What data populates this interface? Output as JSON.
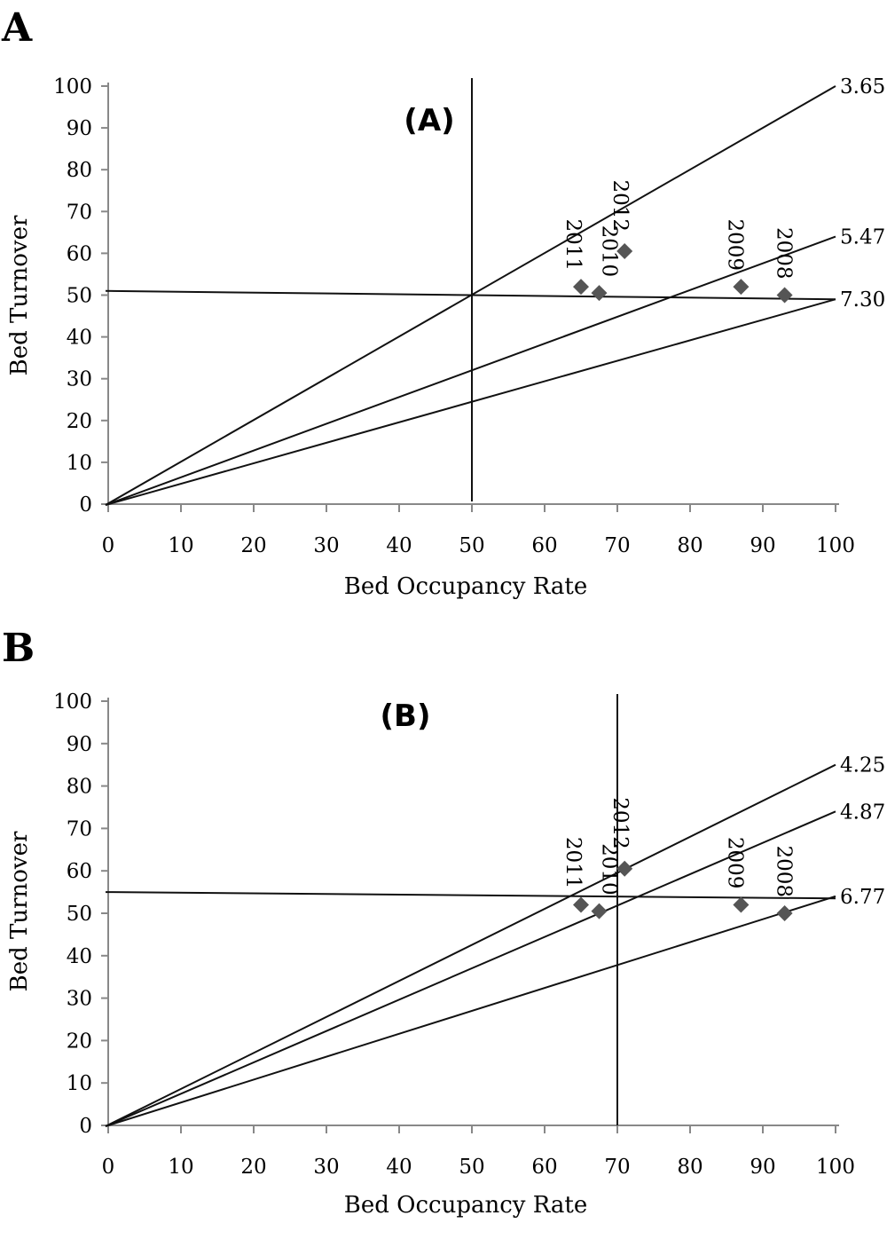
{
  "chart_data": [
    {
      "panel": "A",
      "type": "scatter",
      "title": "(A)",
      "xlabel": "Bed Occupancy Rate",
      "ylabel": "Bed Turnover",
      "xlim": [
        0,
        100
      ],
      "ylim": [
        0,
        100
      ],
      "xticks": [
        "0",
        "10",
        "20",
        "30",
        "40",
        "50",
        "60",
        "70",
        "80",
        "90",
        "100"
      ],
      "yticks": [
        "0",
        "10",
        "20",
        "30",
        "40",
        "50",
        "60",
        "70",
        "80",
        "90",
        "100"
      ],
      "points": [
        {
          "year": "2011",
          "x": 65,
          "y": 52
        },
        {
          "year": "2010",
          "x": 67.5,
          "y": 50.5
        },
        {
          "year": "2012",
          "x": 71,
          "y": 60.5
        },
        {
          "year": "2009",
          "x": 87,
          "y": 52
        },
        {
          "year": "2008",
          "x": 93,
          "y": 50
        }
      ],
      "isoclines": [
        {
          "label": "3.65",
          "end_y": 100
        },
        {
          "label": "5.47",
          "end_y": 64
        },
        {
          "label": "7.30",
          "end_y": 49
        }
      ],
      "reference_lines": {
        "vertical_x": 50,
        "horizontal_y": [
          51,
          49
        ]
      },
      "marker_color": "#555555"
    },
    {
      "panel": "B",
      "type": "scatter",
      "title": "(B)",
      "xlabel": "Bed Occupancy Rate",
      "ylabel": "Bed Turnover",
      "xlim": [
        0,
        100
      ],
      "ylim": [
        0,
        100
      ],
      "xticks": [
        "0",
        "10",
        "20",
        "30",
        "40",
        "50",
        "60",
        "70",
        "80",
        "90",
        "100"
      ],
      "yticks": [
        "0",
        "10",
        "20",
        "30",
        "40",
        "50",
        "60",
        "70",
        "80",
        "90",
        "100"
      ],
      "points": [
        {
          "year": "2011",
          "x": 65,
          "y": 52
        },
        {
          "year": "2010",
          "x": 67.5,
          "y": 50.5
        },
        {
          "year": "2012",
          "x": 71,
          "y": 60.5
        },
        {
          "year": "2009",
          "x": 87,
          "y": 52
        },
        {
          "year": "2008",
          "x": 93,
          "y": 50
        }
      ],
      "isoclines": [
        {
          "label": "4.25",
          "end_y": 85
        },
        {
          "label": "4.87",
          "end_y": 74
        },
        {
          "label": "6.77",
          "end_y": 54
        }
      ],
      "reference_lines": {
        "vertical_x": 70,
        "horizontal_y": [
          55,
          53.5
        ]
      },
      "marker_color": "#555555"
    }
  ]
}
